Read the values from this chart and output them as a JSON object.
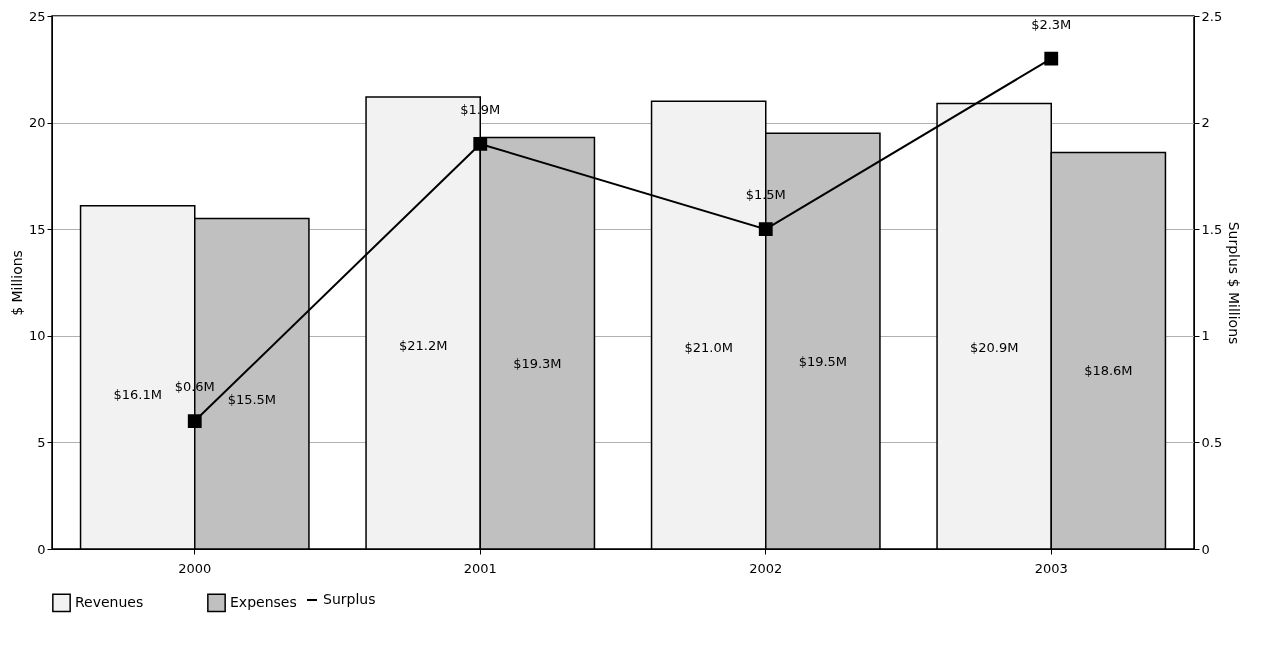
{
  "chart_data": {
    "type": "bar",
    "categories": [
      "2000",
      "2001",
      "2002",
      "2003"
    ],
    "ylabel": "$ Millions",
    "y2label": "Surplus $ Millions",
    "ylim": [
      0,
      25
    ],
    "yticks": [
      0,
      5,
      10,
      15,
      20,
      25
    ],
    "y2lim": [
      0,
      2.5
    ],
    "y2ticks": [
      {
        "value": 0,
        "label": "0"
      },
      0.5,
      {
        "value": 1,
        "label": "1"
      },
      1.5,
      {
        "value": 2,
        "label": "2"
      },
      2.5
    ],
    "grid": "y",
    "legend": "bottom",
    "series": [
      {
        "name": "Revenues",
        "color": "#f2f2f2",
        "values": [
          16.1,
          21.2,
          21.0,
          20.9
        ],
        "value_labels": [
          "$16.1M",
          "$21.2M",
          "$21.0M",
          "$20.9M"
        ]
      },
      {
        "name": "Expenses",
        "color": "#c0c0c0",
        "values": [
          15.5,
          19.3,
          19.5,
          18.6
        ],
        "value_labels": [
          "$15.5M",
          "$19.3M",
          "$19.5M",
          "$18.6M"
        ]
      },
      {
        "name": "Surplus",
        "type": "line",
        "axis": "y2",
        "color": "#000000",
        "marker": "square",
        "line_style": "solid",
        "values": [
          0.6,
          1.9,
          1.5,
          2.3
        ],
        "value_labels": [
          "$0.6M",
          "$1.9M",
          "$1.5M",
          "$2.3M"
        ]
      }
    ]
  }
}
